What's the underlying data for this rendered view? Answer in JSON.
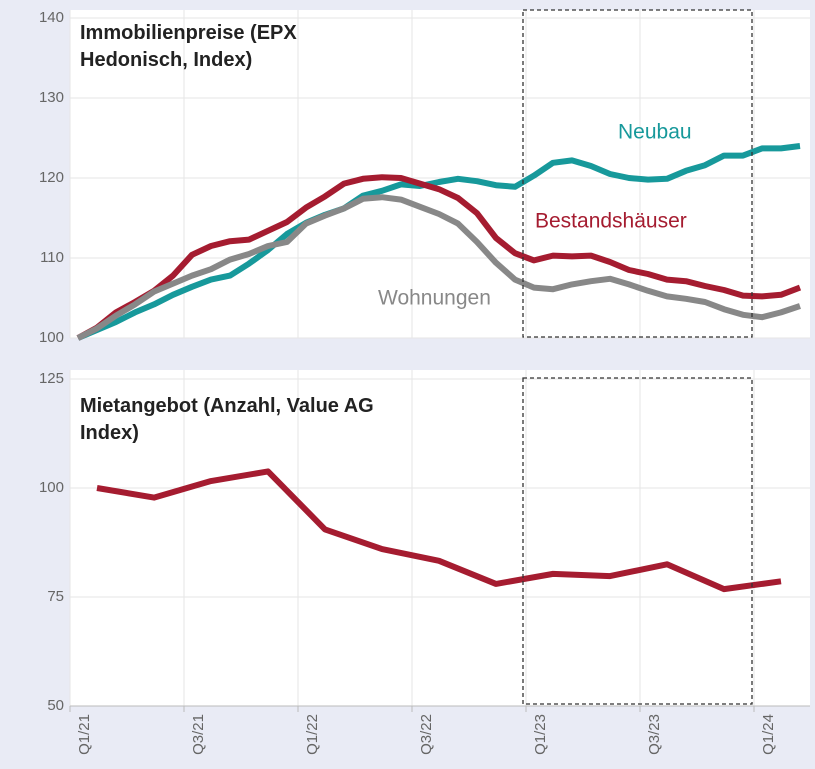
{
  "chart_data": [
    {
      "type": "line",
      "title": "Immobilienpreise (EPX Hedonisch, Index)",
      "categories": [
        "Q1/21",
        null,
        null,
        null,
        null,
        null,
        "Q3/21",
        null,
        null,
        null,
        null,
        null,
        "Q1/22",
        null,
        null,
        null,
        null,
        null,
        "Q3/22",
        null,
        null,
        null,
        null,
        null,
        "Q1/23",
        null,
        null,
        null,
        null,
        null,
        "Q3/23",
        null,
        null,
        null,
        null,
        null,
        "Q1/24",
        null,
        null
      ],
      "ylim": [
        100,
        140
      ],
      "yticks": [
        100,
        110,
        120,
        130,
        140
      ],
      "grid": true,
      "series": [
        {
          "name": "Neubau",
          "color": "#17999b",
          "values": [
            100,
            101,
            102,
            103.2,
            104.2,
            105.4,
            106.4,
            107.3,
            107.8,
            109.3,
            111,
            113,
            114.4,
            115.4,
            116.2,
            117.8,
            118.4,
            119.2,
            119,
            119.5,
            119.9,
            119.6,
            119.1,
            118.9,
            120.3,
            121.9,
            122.2,
            121.5,
            120.5,
            120,
            119.8,
            119.9,
            120.9,
            121.6,
            122.8,
            122.8,
            123.7,
            123.7,
            124
          ]
        },
        {
          "name": "Bestandshäuser",
          "color": "#a51c30",
          "values": [
            100,
            101.3,
            103.2,
            104.5,
            105.9,
            107.8,
            110.4,
            111.5,
            112.1,
            112.3,
            113.4,
            114.5,
            116.3,
            117.7,
            119.3,
            119.9,
            120.1,
            120,
            119.3,
            118.6,
            117.5,
            115.6,
            112.5,
            110.6,
            109.7,
            110.3,
            110.2,
            110.3,
            109.5,
            108.5,
            108,
            107.3,
            107.1,
            106.5,
            106,
            105.3,
            105.2,
            105.4,
            106.3
          ]
        },
        {
          "name": "Wohnungen",
          "color": "#888888",
          "values": [
            100,
            101.2,
            102.8,
            104.2,
            105.8,
            106.8,
            107.8,
            108.6,
            109.8,
            110.5,
            111.5,
            112,
            114.3,
            115.3,
            116.2,
            117.4,
            117.6,
            117.3,
            116.4,
            115.5,
            114.3,
            112,
            109.4,
            107.3,
            106.3,
            106.1,
            106.7,
            107.1,
            107.4,
            106.7,
            105.9,
            105.2,
            104.9,
            104.5,
            103.6,
            102.9,
            102.6,
            103.2,
            104
          ]
        }
      ]
    },
    {
      "type": "line",
      "title": "Mietangebot (Anzahl, Value AG Index)",
      "categories": [
        null,
        null,
        null,
        null,
        null,
        null,
        null,
        null,
        null,
        null,
        null,
        null,
        null
      ],
      "ylim": [
        50,
        125
      ],
      "yticks": [
        50,
        75,
        100,
        125
      ],
      "grid": true,
      "color": "#a51c30",
      "values": [
        100,
        97.8,
        101.6,
        103.8,
        90.5,
        86,
        83.3,
        78,
        80.3,
        79.8,
        82.5,
        76.8,
        78.6
      ]
    }
  ]
}
